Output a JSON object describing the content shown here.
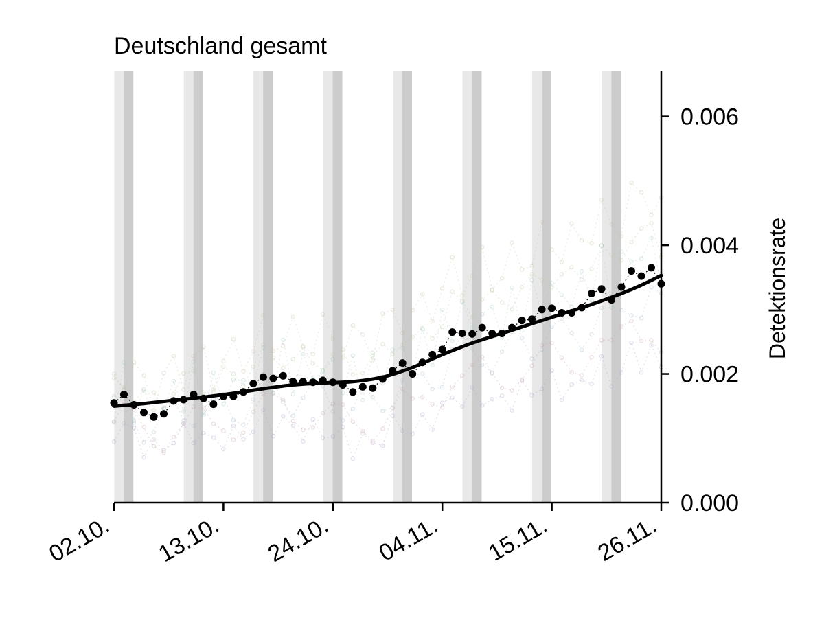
{
  "chart_data": {
    "type": "scatter",
    "title": "Deutschland gesamt",
    "xlabel": "",
    "ylabel": "Detektionsrate",
    "y_axis_position": "right",
    "ylim": [
      0,
      0.0067
    ],
    "yticks": [
      0.0,
      0.002,
      0.004,
      0.006
    ],
    "ytick_labels": [
      "0.000",
      "0.002",
      "0.004",
      "0.006"
    ],
    "x_start_date": "2021-10-02",
    "xlim_dates": [
      "2021-10-02",
      "2021-11-26"
    ],
    "xticks": [
      "2021-10-02",
      "2021-10-13",
      "2021-10-24",
      "2021-11-04",
      "2021-11-15",
      "2021-11-26"
    ],
    "xtick_labels": [
      "02.10.",
      "13.10.",
      "24.10.",
      "04.11.",
      "15.11.",
      "26.11."
    ],
    "weekend_bands": [
      [
        "2021-10-02",
        "2021-10-03"
      ],
      [
        "2021-10-09",
        "2021-10-10"
      ],
      [
        "2021-10-16",
        "2021-10-17"
      ],
      [
        "2021-10-23",
        "2021-10-24"
      ],
      [
        "2021-10-30",
        "2021-10-31"
      ],
      [
        "2021-11-06",
        "2021-11-07"
      ],
      [
        "2021-11-13",
        "2021-11-14"
      ],
      [
        "2021-11-20",
        "2021-11-21"
      ]
    ],
    "series": [
      {
        "color": "#000000",
        "x": [
          "2021-10-02",
          "2021-10-03",
          "2021-10-04",
          "2021-10-05",
          "2021-10-06",
          "2021-10-07",
          "2021-10-08",
          "2021-10-09",
          "2021-10-10",
          "2021-10-11",
          "2021-10-12",
          "2021-10-13",
          "2021-10-14",
          "2021-10-15",
          "2021-10-16",
          "2021-10-17",
          "2021-10-18",
          "2021-10-19",
          "2021-10-20",
          "2021-10-21",
          "2021-10-22",
          "2021-10-23",
          "2021-10-24",
          "2021-10-25",
          "2021-10-26",
          "2021-10-27",
          "2021-10-28",
          "2021-10-29",
          "2021-10-30",
          "2021-10-31",
          "2021-11-01",
          "2021-11-02",
          "2021-11-03",
          "2021-11-04",
          "2021-11-05",
          "2021-11-06",
          "2021-11-07",
          "2021-11-08",
          "2021-11-09",
          "2021-11-10",
          "2021-11-11",
          "2021-11-12",
          "2021-11-13",
          "2021-11-14",
          "2021-11-15",
          "2021-11-16",
          "2021-11-17",
          "2021-11-18",
          "2021-11-19",
          "2021-11-20",
          "2021-11-21",
          "2021-11-22",
          "2021-11-23",
          "2021-11-24",
          "2021-11-25",
          "2021-11-26"
        ],
        "values": [
          0.00155,
          0.00168,
          0.00152,
          0.0014,
          0.00133,
          0.00138,
          0.00158,
          0.0016,
          0.00168,
          0.00162,
          0.00153,
          0.00165,
          0.00165,
          0.00172,
          0.00185,
          0.00195,
          0.00193,
          0.00197,
          0.00188,
          0.00188,
          0.00187,
          0.0019,
          0.00187,
          0.00183,
          0.00172,
          0.0018,
          0.00178,
          0.00192,
          0.00205,
          0.00217,
          0.002,
          0.00218,
          0.0023,
          0.00238,
          0.00265,
          0.00263,
          0.00262,
          0.00272,
          0.00263,
          0.00263,
          0.00272,
          0.00283,
          0.00285,
          0.003,
          0.00302,
          0.00295,
          0.00295,
          0.00303,
          0.00325,
          0.00332,
          0.00315,
          0.00335,
          0.0036,
          0.00352,
          0.00365,
          0.0034
        ]
      }
    ],
    "smooth_fit": {
      "color": "#000000",
      "x": [
        "2021-10-02",
        "2021-10-05",
        "2021-10-08",
        "2021-10-11",
        "2021-10-14",
        "2021-10-17",
        "2021-10-20",
        "2021-10-23",
        "2021-10-26",
        "2021-10-29",
        "2021-11-01",
        "2021-11-04",
        "2021-11-07",
        "2021-11-10",
        "2021-11-13",
        "2021-11-16",
        "2021-11-19",
        "2021-11-22",
        "2021-11-24",
        "2021-11-26"
      ],
      "values": [
        0.0015,
        0.00154,
        0.00159,
        0.00164,
        0.0017,
        0.00177,
        0.00183,
        0.00186,
        0.00188,
        0.00195,
        0.0021,
        0.0023,
        0.00248,
        0.00263,
        0.00278,
        0.00293,
        0.00308,
        0.00325,
        0.00338,
        0.00353
      ]
    },
    "colors": {
      "background": "#ffffff",
      "axis": "#000000",
      "band_light": "#e8e8e8",
      "band_dark": "#cccccc",
      "background_traces": [
        "#c9a0a0",
        "#a0b8c9",
        "#b8c9a0",
        "#c9bca0",
        "#b0a0c9",
        "#a0c9bc"
      ]
    }
  }
}
